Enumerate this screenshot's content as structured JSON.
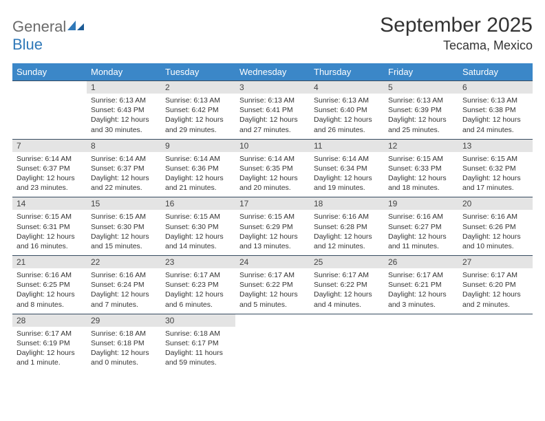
{
  "logo": {
    "part1": "General",
    "part2": "Blue"
  },
  "title": "September 2025",
  "location": "Tecama, Mexico",
  "day_headers": [
    "Sunday",
    "Monday",
    "Tuesday",
    "Wednesday",
    "Thursday",
    "Friday",
    "Saturday"
  ],
  "colors": {
    "header_bg": "#3b87c8",
    "header_text": "#ffffff",
    "daynum_bg": "#e4e4e4",
    "border_top": "#34495e",
    "logo_gray": "#6a6a6a",
    "logo_blue": "#2f78b8"
  },
  "weeks": [
    [
      {
        "n": "",
        "sr": "",
        "ss": "",
        "dl": ""
      },
      {
        "n": "1",
        "sr": "Sunrise: 6:13 AM",
        "ss": "Sunset: 6:43 PM",
        "dl": "Daylight: 12 hours and 30 minutes."
      },
      {
        "n": "2",
        "sr": "Sunrise: 6:13 AM",
        "ss": "Sunset: 6:42 PM",
        "dl": "Daylight: 12 hours and 29 minutes."
      },
      {
        "n": "3",
        "sr": "Sunrise: 6:13 AM",
        "ss": "Sunset: 6:41 PM",
        "dl": "Daylight: 12 hours and 27 minutes."
      },
      {
        "n": "4",
        "sr": "Sunrise: 6:13 AM",
        "ss": "Sunset: 6:40 PM",
        "dl": "Daylight: 12 hours and 26 minutes."
      },
      {
        "n": "5",
        "sr": "Sunrise: 6:13 AM",
        "ss": "Sunset: 6:39 PM",
        "dl": "Daylight: 12 hours and 25 minutes."
      },
      {
        "n": "6",
        "sr": "Sunrise: 6:13 AM",
        "ss": "Sunset: 6:38 PM",
        "dl": "Daylight: 12 hours and 24 minutes."
      }
    ],
    [
      {
        "n": "7",
        "sr": "Sunrise: 6:14 AM",
        "ss": "Sunset: 6:37 PM",
        "dl": "Daylight: 12 hours and 23 minutes."
      },
      {
        "n": "8",
        "sr": "Sunrise: 6:14 AM",
        "ss": "Sunset: 6:37 PM",
        "dl": "Daylight: 12 hours and 22 minutes."
      },
      {
        "n": "9",
        "sr": "Sunrise: 6:14 AM",
        "ss": "Sunset: 6:36 PM",
        "dl": "Daylight: 12 hours and 21 minutes."
      },
      {
        "n": "10",
        "sr": "Sunrise: 6:14 AM",
        "ss": "Sunset: 6:35 PM",
        "dl": "Daylight: 12 hours and 20 minutes."
      },
      {
        "n": "11",
        "sr": "Sunrise: 6:14 AM",
        "ss": "Sunset: 6:34 PM",
        "dl": "Daylight: 12 hours and 19 minutes."
      },
      {
        "n": "12",
        "sr": "Sunrise: 6:15 AM",
        "ss": "Sunset: 6:33 PM",
        "dl": "Daylight: 12 hours and 18 minutes."
      },
      {
        "n": "13",
        "sr": "Sunrise: 6:15 AM",
        "ss": "Sunset: 6:32 PM",
        "dl": "Daylight: 12 hours and 17 minutes."
      }
    ],
    [
      {
        "n": "14",
        "sr": "Sunrise: 6:15 AM",
        "ss": "Sunset: 6:31 PM",
        "dl": "Daylight: 12 hours and 16 minutes."
      },
      {
        "n": "15",
        "sr": "Sunrise: 6:15 AM",
        "ss": "Sunset: 6:30 PM",
        "dl": "Daylight: 12 hours and 15 minutes."
      },
      {
        "n": "16",
        "sr": "Sunrise: 6:15 AM",
        "ss": "Sunset: 6:30 PM",
        "dl": "Daylight: 12 hours and 14 minutes."
      },
      {
        "n": "17",
        "sr": "Sunrise: 6:15 AM",
        "ss": "Sunset: 6:29 PM",
        "dl": "Daylight: 12 hours and 13 minutes."
      },
      {
        "n": "18",
        "sr": "Sunrise: 6:16 AM",
        "ss": "Sunset: 6:28 PM",
        "dl": "Daylight: 12 hours and 12 minutes."
      },
      {
        "n": "19",
        "sr": "Sunrise: 6:16 AM",
        "ss": "Sunset: 6:27 PM",
        "dl": "Daylight: 12 hours and 11 minutes."
      },
      {
        "n": "20",
        "sr": "Sunrise: 6:16 AM",
        "ss": "Sunset: 6:26 PM",
        "dl": "Daylight: 12 hours and 10 minutes."
      }
    ],
    [
      {
        "n": "21",
        "sr": "Sunrise: 6:16 AM",
        "ss": "Sunset: 6:25 PM",
        "dl": "Daylight: 12 hours and 8 minutes."
      },
      {
        "n": "22",
        "sr": "Sunrise: 6:16 AM",
        "ss": "Sunset: 6:24 PM",
        "dl": "Daylight: 12 hours and 7 minutes."
      },
      {
        "n": "23",
        "sr": "Sunrise: 6:17 AM",
        "ss": "Sunset: 6:23 PM",
        "dl": "Daylight: 12 hours and 6 minutes."
      },
      {
        "n": "24",
        "sr": "Sunrise: 6:17 AM",
        "ss": "Sunset: 6:22 PM",
        "dl": "Daylight: 12 hours and 5 minutes."
      },
      {
        "n": "25",
        "sr": "Sunrise: 6:17 AM",
        "ss": "Sunset: 6:22 PM",
        "dl": "Daylight: 12 hours and 4 minutes."
      },
      {
        "n": "26",
        "sr": "Sunrise: 6:17 AM",
        "ss": "Sunset: 6:21 PM",
        "dl": "Daylight: 12 hours and 3 minutes."
      },
      {
        "n": "27",
        "sr": "Sunrise: 6:17 AM",
        "ss": "Sunset: 6:20 PM",
        "dl": "Daylight: 12 hours and 2 minutes."
      }
    ],
    [
      {
        "n": "28",
        "sr": "Sunrise: 6:17 AM",
        "ss": "Sunset: 6:19 PM",
        "dl": "Daylight: 12 hours and 1 minute."
      },
      {
        "n": "29",
        "sr": "Sunrise: 6:18 AM",
        "ss": "Sunset: 6:18 PM",
        "dl": "Daylight: 12 hours and 0 minutes."
      },
      {
        "n": "30",
        "sr": "Sunrise: 6:18 AM",
        "ss": "Sunset: 6:17 PM",
        "dl": "Daylight: 11 hours and 59 minutes."
      },
      {
        "n": "",
        "sr": "",
        "ss": "",
        "dl": ""
      },
      {
        "n": "",
        "sr": "",
        "ss": "",
        "dl": ""
      },
      {
        "n": "",
        "sr": "",
        "ss": "",
        "dl": ""
      },
      {
        "n": "",
        "sr": "",
        "ss": "",
        "dl": ""
      }
    ]
  ]
}
